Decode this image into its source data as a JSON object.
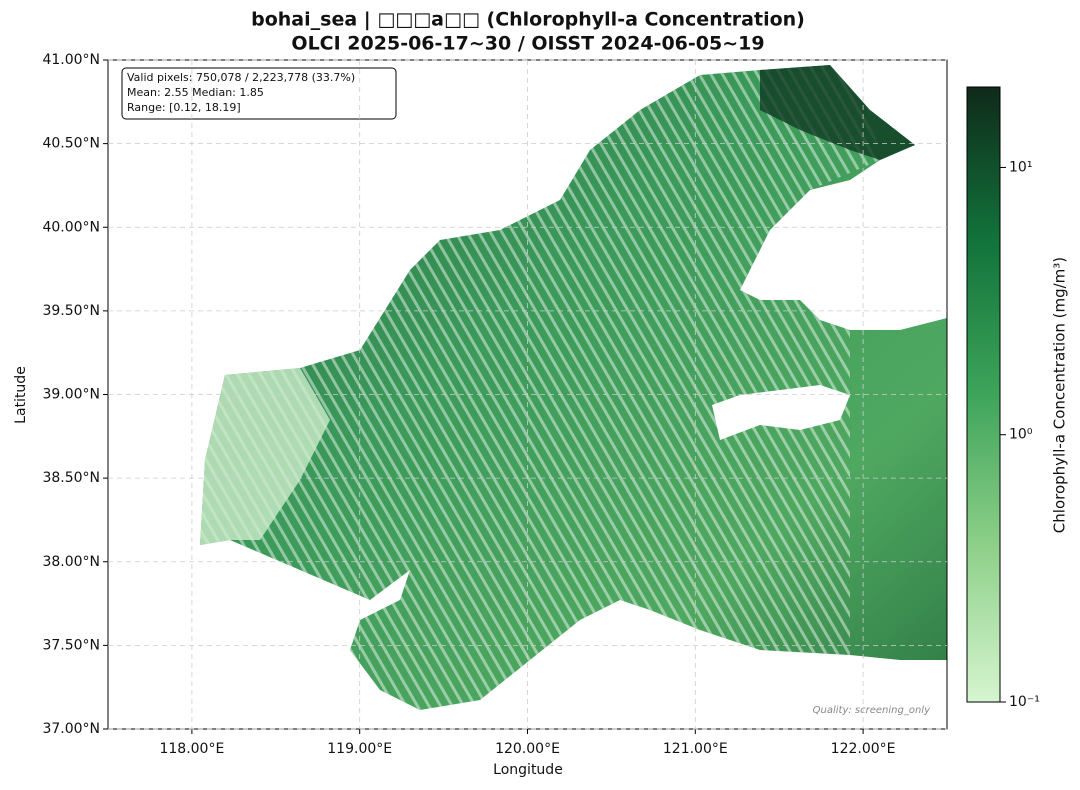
{
  "chart_data": {
    "type": "map",
    "title": "bohai_sea | □□□a□□ (Chlorophyll-a Concentration)",
    "subtitle": "OLCI 2025-06-17~30 / OISST 2024-06-05~19",
    "x_label": "Longitude",
    "y_label": "Latitude",
    "xlim": [
      117.5,
      122.5
    ],
    "xticks": [
      {
        "value": 118,
        "label": "118.00°E"
      },
      {
        "value": 119,
        "label": "119.00°E"
      },
      {
        "value": 120,
        "label": "120.00°E"
      },
      {
        "value": 121,
        "label": "121.00°E"
      },
      {
        "value": 122,
        "label": "122.00°E"
      }
    ],
    "ylim": [
      37,
      41
    ],
    "yticks": [
      {
        "value": 37,
        "label": "37.00°N"
      },
      {
        "value": 37.5,
        "label": "37.50°N"
      },
      {
        "value": 38,
        "label": "38.00°N"
      },
      {
        "value": 38.5,
        "label": "38.50°N"
      },
      {
        "value": 39,
        "label": "39.00°N"
      },
      {
        "value": 39.5,
        "label": "39.50°N"
      },
      {
        "value": 40,
        "label": "40.00°N"
      },
      {
        "value": 40.5,
        "label": "40.50°N"
      },
      {
        "value": 41,
        "label": "41.00°N"
      }
    ],
    "grid": true,
    "stats": [
      "Valid pixels: 750,078 / 2,223,778 (33.7%)",
      "Mean: 2.55  Median: 1.85",
      "Range: [0.12, 18.19]"
    ],
    "note": "Quality: screening_only",
    "colorbar": {
      "label": "Chlorophyll-a Concentration (mg/m³)",
      "scale": "log",
      "lim": [
        0.1,
        20
      ],
      "ticks": [
        {
          "value": 0.1,
          "label": "10⁻¹"
        },
        {
          "value": 1,
          "label": "10⁰"
        },
        {
          "value": 10,
          "label": "10¹"
        }
      ]
    }
  }
}
